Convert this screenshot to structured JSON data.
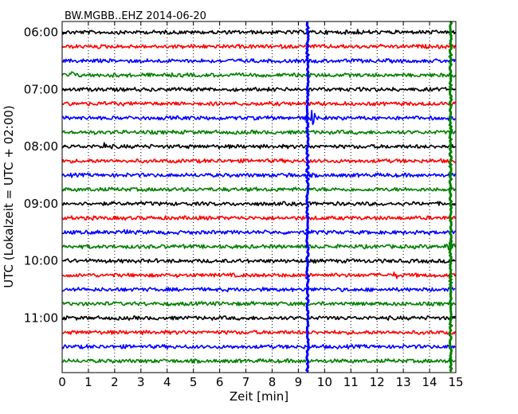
{
  "chart_data": {
    "type": "line",
    "title": "BW.MGBB..EHZ 2014-06-20",
    "xlabel": "Zeit  [min]",
    "ylabel": "UTC (Lokalzeit = UTC + 02:00)",
    "xlim": [
      0,
      15
    ],
    "x_ticks": [
      "0",
      "1",
      "2",
      "3",
      "4",
      "5",
      "6",
      "7",
      "8",
      "9",
      "10",
      "11",
      "12",
      "13",
      "14",
      "15"
    ],
    "y_ticks": [
      {
        "label": "06:00",
        "row": 0
      },
      {
        "label": "07:00",
        "row": 4
      },
      {
        "label": "08:00",
        "row": 8
      },
      {
        "label": "09:00",
        "row": 12
      },
      {
        "label": "10:00",
        "row": 16
      },
      {
        "label": "11:00",
        "row": 20
      }
    ],
    "row_minutes": 15,
    "row_start_times": [
      "06:00",
      "06:15",
      "06:30",
      "06:45",
      "07:00",
      "07:15",
      "07:30",
      "07:45",
      "08:00",
      "08:15",
      "08:30",
      "08:45",
      "09:00",
      "09:15",
      "09:30",
      "09:45",
      "10:00",
      "10:15",
      "10:30",
      "10:45",
      "11:00",
      "11:15",
      "11:30",
      "11:45"
    ],
    "series_colors": [
      "#000000",
      "#ff0000",
      "#0000ff",
      "#008000"
    ],
    "grid": "vertical dotted",
    "events": [
      {
        "x_min": 9.35,
        "rows": "all",
        "color": "#0000ff",
        "description": "strong blue vertical line"
      },
      {
        "x_min": 14.8,
        "rows": "all",
        "color": "#008000",
        "description": "strong green vertical line"
      },
      {
        "x_min": 9.5,
        "row": 6,
        "description": "large burst"
      },
      {
        "x_min": 8.6,
        "row": 10,
        "description": "spike"
      },
      {
        "x_min": 14.8,
        "row": 15,
        "description": "large burst"
      },
      {
        "x_min": 12.7,
        "row": 17,
        "description": "spike"
      },
      {
        "x_min": 11.3,
        "row": 0,
        "description": "small spike"
      },
      {
        "x_min": 1.6,
        "row": 8,
        "description": "small spike"
      },
      {
        "x_min": 2.4,
        "row": 14,
        "description": "small spike"
      },
      {
        "x_min": 0.4,
        "row": 3,
        "description": "small spike"
      }
    ]
  }
}
